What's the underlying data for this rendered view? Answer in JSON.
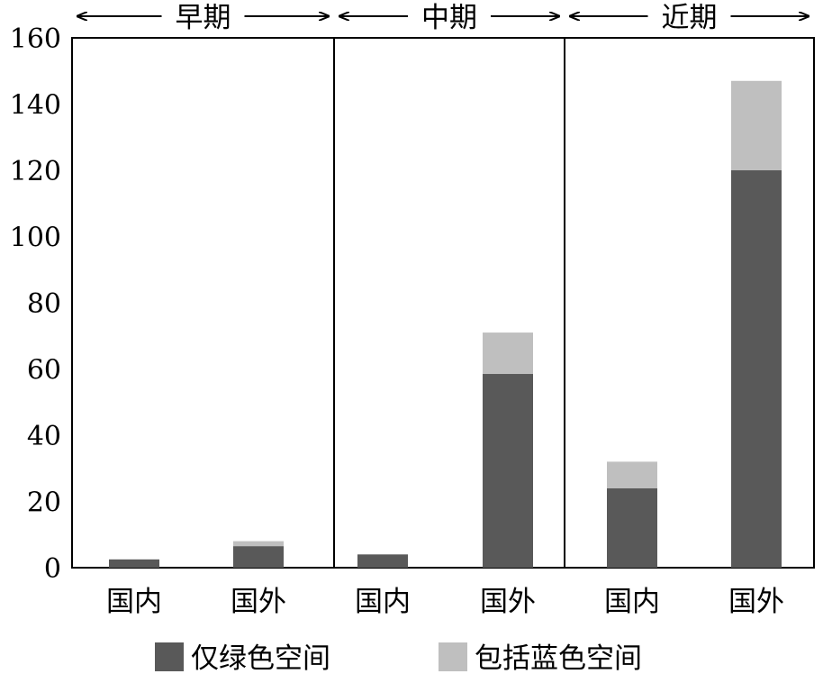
{
  "chart_data": {
    "type": "bar",
    "stacked": true,
    "groups": [
      "早期",
      "中期",
      "近期"
    ],
    "categories": [
      "国内",
      "国外",
      "国内",
      "国外",
      "国内",
      "国外"
    ],
    "y_ticks": [
      "0",
      "20",
      "40",
      "60",
      "80",
      "100",
      "120",
      "140",
      "160"
    ],
    "ylim": [
      0,
      160
    ],
    "series": [
      {
        "name": "仅绿色空间",
        "color": "#595959",
        "values": [
          2.5,
          6.5,
          4,
          58.5,
          24,
          120
        ]
      },
      {
        "name": "包括蓝色空间",
        "color": "#bfbfbf",
        "values": [
          0,
          1.5,
          0,
          12.5,
          8,
          27
        ]
      }
    ],
    "legend_position": "bottom",
    "grid": false
  }
}
